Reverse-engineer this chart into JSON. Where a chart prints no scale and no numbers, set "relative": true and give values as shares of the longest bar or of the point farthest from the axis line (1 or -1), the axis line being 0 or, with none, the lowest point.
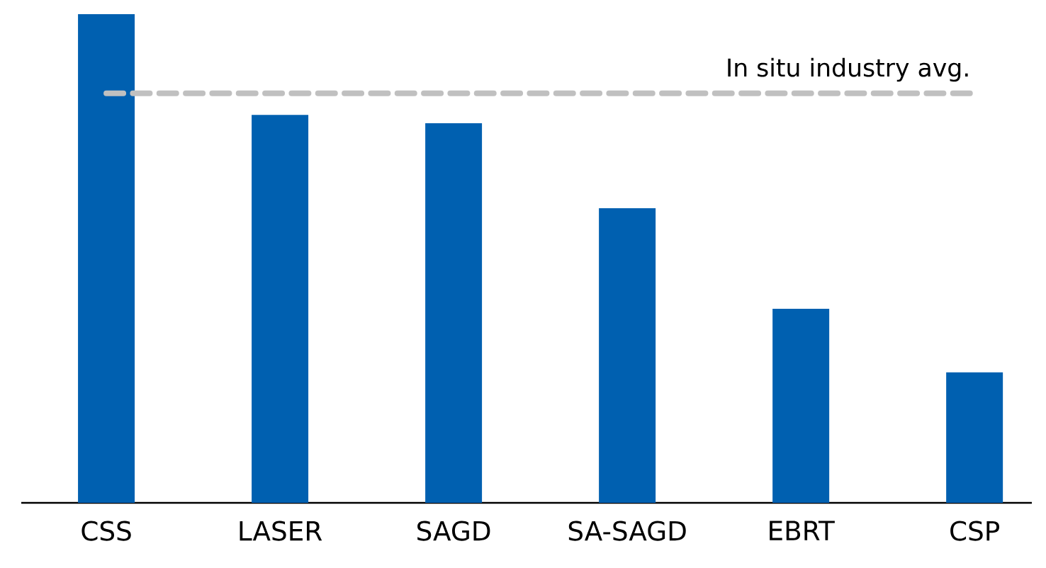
{
  "chart_data": {
    "type": "bar",
    "relative": true,
    "categories": [
      "CSS",
      "LASER",
      "SAGD",
      "SA-SAGD",
      "EBRT",
      "CSP"
    ],
    "values": [
      1,
      0.794,
      0.777,
      0.603,
      0.397,
      0.267
    ],
    "color": "#0060b0",
    "ref_lines": [
      {
        "axis": "y",
        "value": 0.838,
        "label": "In situ industry avg.",
        "color": "#c0c0c0",
        "line_style": "dashed"
      }
    ]
  }
}
